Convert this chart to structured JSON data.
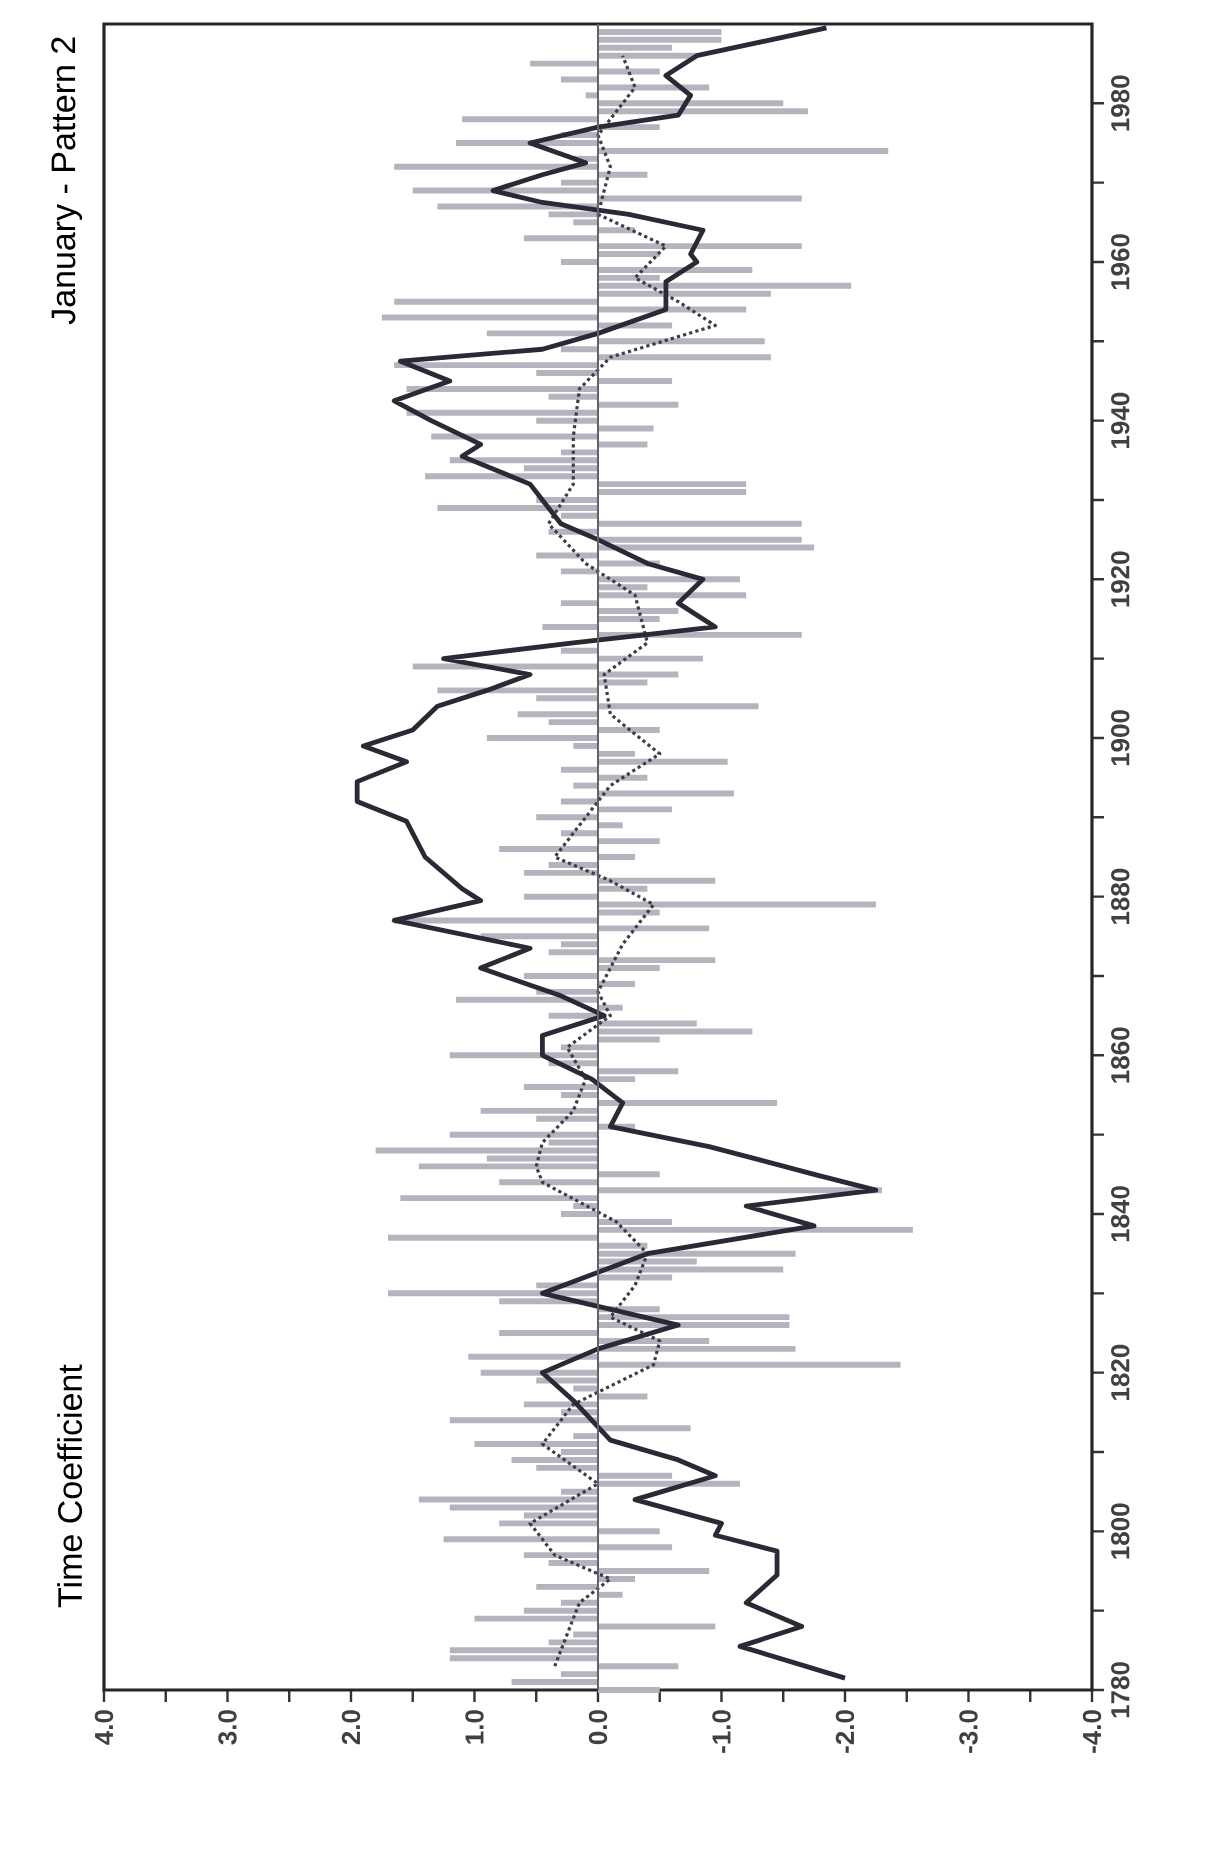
{
  "chart_data": {
    "type": "bar",
    "orientation": "horizontal",
    "title": "January - Pattern 2",
    "ylabel": "Time Coefficient",
    "ylim": [
      1780,
      1990
    ],
    "xlim": [
      4,
      -4
    ],
    "yticks": [
      1780,
      {
        "value": 1790,
        "label": null
      },
      1800,
      {
        "value": 1810,
        "label": null
      },
      1820,
      {
        "value": 1830,
        "label": null
      },
      1840,
      {
        "value": 1850,
        "label": null
      },
      1860,
      {
        "value": 1870,
        "label": null
      },
      1880,
      {
        "value": 1890,
        "label": null
      },
      1900,
      {
        "value": 1910,
        "label": null
      },
      1920,
      {
        "value": 1930,
        "label": null
      },
      1940,
      {
        "value": 1950,
        "label": null
      },
      1960,
      {
        "value": 1970,
        "label": null
      },
      1980
    ],
    "xticks": [
      {
        "value": 4,
        "label": "4.0"
      },
      {
        "value": 3.5,
        "label": null
      },
      {
        "value": 3,
        "label": "3.0"
      },
      {
        "value": 2.5,
        "label": null
      },
      {
        "value": 2,
        "label": "2.0"
      },
      {
        "value": 1.5,
        "label": null
      },
      {
        "value": 1,
        "label": "1.0"
      },
      {
        "value": 0.5,
        "label": null
      },
      {
        "value": 0,
        "label": "0.0"
      },
      {
        "value": -0.5,
        "label": null
      },
      {
        "value": -1,
        "label": "-1.0"
      },
      {
        "value": -1.5,
        "label": null
      },
      {
        "value": -2,
        "label": "-2.0"
      },
      {
        "value": -2.5,
        "label": null
      },
      {
        "value": -3,
        "label": "-3.0"
      },
      {
        "value": -3.5,
        "label": null
      },
      {
        "value": -4,
        "label": "-4.0"
      }
    ],
    "ref_lines": [
      {
        "axis": "x",
        "value": 0,
        "color": "#606070"
      }
    ],
    "series": [
      {
        "color": "#b4b4be",
        "x": [
          1780,
          1781,
          1782,
          1783,
          1784,
          1785,
          1786,
          1787,
          1788,
          1789,
          1790,
          1791,
          1792,
          1793,
          1794,
          1795,
          1796,
          1797,
          1798,
          1799,
          1800,
          1801,
          1802,
          1803,
          1804,
          1805,
          1806,
          1807,
          1808,
          1809,
          1810,
          1811,
          1812,
          1813,
          1814,
          1815,
          1816,
          1817,
          1818,
          1819,
          1820,
          1821,
          1822,
          1823,
          1824,
          1825,
          1826,
          1827,
          1828,
          1829,
          1830,
          1831,
          1832,
          1833,
          1834,
          1835,
          1836,
          1837,
          1838,
          1839,
          1840,
          1841,
          1842,
          1843,
          1844,
          1845,
          1846,
          1847,
          1848,
          1849,
          1850,
          1851,
          1852,
          1853,
          1854,
          1855,
          1856,
          1857,
          1858,
          1859,
          1860,
          1861,
          1862,
          1863,
          1864,
          1865,
          1866,
          1867,
          1868,
          1869,
          1870,
          1871,
          1872,
          1873,
          1874,
          1875,
          1876,
          1877,
          1878,
          1879,
          1880,
          1881,
          1882,
          1883,
          1884,
          1885,
          1886,
          1887,
          1888,
          1889,
          1890,
          1891,
          1892,
          1893,
          1894,
          1895,
          1896,
          1897,
          1898,
          1899,
          1900,
          1901,
          1902,
          1903,
          1904,
          1905,
          1906,
          1907,
          1908,
          1909,
          1910,
          1911,
          1912,
          1913,
          1914,
          1915,
          1916,
          1917,
          1918,
          1919,
          1920,
          1921,
          1922,
          1923,
          1924,
          1925,
          1926,
          1927,
          1928,
          1929,
          1930,
          1931,
          1932,
          1933,
          1934,
          1935,
          1936,
          1937,
          1938,
          1939,
          1940,
          1941,
          1942,
          1943,
          1944,
          1945,
          1946,
          1947,
          1948,
          1949,
          1950,
          1951,
          1952,
          1953,
          1954,
          1955,
          1956,
          1957,
          1958,
          1959,
          1960,
          1961,
          1962,
          1963,
          1964,
          1965,
          1966,
          1967,
          1968,
          1969,
          1970,
          1971,
          1972,
          1973,
          1974,
          1975,
          1976,
          1977,
          1978,
          1979,
          1980,
          1981,
          1982,
          1983,
          1984,
          1985,
          1986,
          1987,
          1988,
          1989
        ],
        "values": [
          -0.5,
          0.7,
          0.3,
          -0.65,
          1.2,
          1.2,
          0.4,
          0.2,
          -0.95,
          1.0,
          0.6,
          0.3,
          -0.2,
          0.5,
          -0.3,
          -0.9,
          0.4,
          0.6,
          -0.6,
          1.25,
          -0.5,
          0.8,
          0.6,
          1.2,
          1.45,
          0.3,
          -1.15,
          -0.6,
          0.5,
          0.7,
          0.3,
          1.0,
          0.2,
          -0.75,
          1.2,
          0.3,
          0.6,
          -0.4,
          0.2,
          0.5,
          0.95,
          -2.45,
          1.05,
          -1.6,
          -0.9,
          0.8,
          -1.55,
          -1.55,
          -0.5,
          0.8,
          1.7,
          0.5,
          -0.6,
          -1.5,
          -0.8,
          -1.6,
          -0.4,
          1.7,
          -2.55,
          -0.6,
          0.3,
          0.2,
          1.6,
          -2.3,
          0.8,
          -0.5,
          1.45,
          0.9,
          1.8,
          0.4,
          1.2,
          -0.3,
          0.5,
          0.95,
          -1.45,
          0.3,
          0.6,
          -0.3,
          -0.65,
          0.4,
          1.2,
          0.3,
          -0.5,
          -1.25,
          -0.8,
          0.4,
          -0.2,
          1.15,
          0.5,
          -0.3,
          0.6,
          -0.5,
          -0.95,
          0.4,
          0.3,
          0.95,
          -0.9,
          1.65,
          -0.5,
          -2.25,
          0.6,
          -0.4,
          -0.95,
          0.6,
          0.4,
          -0.3,
          0.8,
          -0.5,
          0.3,
          -0.2,
          0.5,
          -0.6,
          0.3,
          -1.1,
          0.2,
          -0.4,
          0.3,
          -1.05,
          -0.3,
          0.2,
          0.9,
          -0.5,
          0.4,
          0.65,
          -1.3,
          0.5,
          1.3,
          -0.4,
          -0.65,
          1.5,
          -0.85,
          0.3,
          null,
          -1.65,
          0.45,
          -0.5,
          -0.65,
          0.3,
          -1.2,
          -0.4,
          -1.15,
          0.3,
          -0.5,
          0.5,
          -1.75,
          -1.65,
          0.4,
          -1.65,
          0.3,
          1.3,
          0.5,
          -1.2,
          -1.2,
          1.4,
          0.6,
          1.2,
          0.3,
          -0.4,
          1.35,
          -0.45,
          0.5,
          1.55,
          -0.65,
          0.4,
          1.55,
          -0.6,
          0.5,
          1.65,
          -1.4,
          0.3,
          -1.35,
          0.9,
          -0.6,
          1.75,
          -1.2,
          1.65,
          -1.4,
          -2.05,
          -0.5,
          -1.25,
          0.3,
          -0.5,
          -1.65,
          0.6,
          -0.3,
          0.2,
          0.4,
          1.3,
          -1.65,
          1.5,
          0.3,
          -0.4,
          1.65,
          0.2,
          -2.35,
          1.15,
          0.3,
          -0.5,
          1.1,
          -1.7,
          -1.5,
          0.1,
          -0.9,
          0.3,
          -0.5,
          0.55,
          -0.8,
          -0.6,
          -1.0,
          -1.0
        ]
      },
      {
        "type": "line",
        "color": "#3c3c4a",
        "line_style": "dotted",
        "x": [
          1783,
          1791,
          1794,
          1797,
          1801,
          1806,
          1811,
          1816,
          1821,
          1824,
          1827,
          1831,
          1835,
          1839,
          1844,
          1846,
          1849,
          1853,
          1857,
          1861,
          1865,
          1868,
          1874,
          1879,
          1882,
          1885,
          1890,
          1894,
          1898,
          1903,
          1908,
          1912,
          1918,
          1922,
          1927,
          1932,
          1938,
          1944,
          1948,
          1952,
          1955,
          1958,
          1962,
          1966,
          1972,
          1976,
          1982,
          1986
        ],
        "values": [
          0.35,
          0.15,
          -0.1,
          0.35,
          0.55,
          0.0,
          0.45,
          0.2,
          -0.45,
          -0.5,
          -0.1,
          -0.3,
          -0.4,
          -0.15,
          0.45,
          0.5,
          0.45,
          0.2,
          0.1,
          0.25,
          -0.1,
          0.0,
          -0.2,
          -0.45,
          -0.1,
          0.35,
          0.1,
          -0.1,
          -0.5,
          -0.1,
          -0.05,
          -0.4,
          -0.3,
          0.1,
          0.4,
          0.2,
          0.2,
          0.15,
          -0.1,
          -0.95,
          -0.65,
          -0.3,
          -0.55,
          0.0,
          -0.1,
          0.0,
          -0.3,
          -0.2
        ]
      },
      {
        "type": "line",
        "color": "#2a2a36",
        "line_style": "solid",
        "x": [
          1781.5,
          1785.5,
          1788,
          1791,
          1794.5,
          1797.5,
          1799.5,
          1801,
          1804,
          1807,
          1809,
          1811.5,
          1814,
          1816.5,
          1820,
          1823,
          1826,
          1830,
          1835,
          1838.5,
          1841,
          1843,
          1845,
          1848.5,
          1851,
          1854,
          1857,
          1860,
          1862.5,
          1865,
          1867.5,
          1871,
          1873.5,
          1877,
          1879.5,
          1881,
          1885,
          1889.5,
          1892,
          1894.5,
          1897,
          1899,
          1901,
          1904,
          1906,
          1908,
          1910,
          1912,
          1914,
          1917,
          1920,
          1922,
          1925,
          1927,
          1930,
          1932,
          1935.5,
          1937,
          1940,
          1942.5,
          1945,
          1947.5,
          1949,
          1951,
          1954,
          1957.5,
          1960,
          1961,
          1964,
          1966,
          1967.5,
          1969,
          1971,
          1972.5,
          1975,
          1977,
          1978.5,
          1981,
          1983.5,
          1986,
          1989.5
        ],
        "values": [
          -2.0,
          -1.15,
          -1.65,
          -1.2,
          -1.45,
          -1.45,
          -0.95,
          -1.0,
          -0.3,
          -0.95,
          -0.65,
          -0.1,
          0.05,
          0.2,
          0.45,
          0.0,
          -0.65,
          0.45,
          -0.4,
          -1.75,
          -1.2,
          -2.25,
          -1.75,
          -0.9,
          -0.1,
          -0.2,
          0.05,
          0.45,
          0.45,
          -0.05,
          0.3,
          0.95,
          0.55,
          1.65,
          0.95,
          1.1,
          1.4,
          1.55,
          1.95,
          1.95,
          1.55,
          1.9,
          1.5,
          1.3,
          0.9,
          0.55,
          1.25,
          0.2,
          -0.95,
          -0.65,
          -0.85,
          -0.4,
          0.0,
          0.3,
          0.45,
          0.55,
          1.1,
          0.95,
          1.35,
          1.65,
          1.2,
          1.6,
          0.45,
          0.0,
          -0.55,
          -0.55,
          -0.8,
          -0.75,
          -0.85,
          -0.25,
          0.45,
          0.85,
          0.45,
          0.1,
          0.55,
          0.0,
          -0.65,
          -0.75,
          -0.55,
          -0.8,
          -1.85
        ]
      }
    ]
  }
}
